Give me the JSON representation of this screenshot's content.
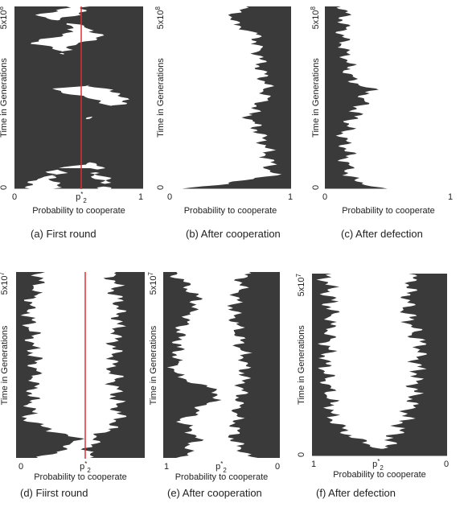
{
  "panels": [
    {
      "y_axis_label": "Time in Generations",
      "y_ticks": {
        "top": {
          "base": "5x10",
          "exp": "8"
        },
        "bottom": "0"
      },
      "x_ticks": [
        "0",
        {
          "base": "p",
          "sup": "*",
          "sub": "2"
        },
        "1"
      ],
      "x_axis_label": "Probability to cooperate",
      "caption": "(a) First round"
    },
    {
      "y_axis_label": "Time in Generations",
      "y_ticks": {
        "top": {
          "base": "5x10",
          "exp": "8"
        },
        "bottom": "0"
      },
      "x_ticks": [
        "0",
        "1"
      ],
      "x_axis_label": "Probability to cooperate",
      "caption": "(b) After cooperation"
    },
    {
      "y_axis_label": "Time in Generations",
      "y_ticks": {
        "top": {
          "base": "5x10",
          "exp": "8"
        },
        "bottom": "0"
      },
      "x_ticks": [
        "0",
        "1"
      ],
      "x_axis_label": "Probability to cooperate",
      "caption": "(c) After defection"
    },
    {
      "y_axis_label": "Time in Generations",
      "y_ticks": {
        "top": {
          "base": "5x10",
          "exp": "7"
        }
      },
      "x_ticks": [
        "0",
        {
          "base": "p",
          "sup": "*",
          "sub": "2"
        }
      ],
      "x_axis_label": "Probability to cooperate",
      "caption": "(d) Fiirst round"
    },
    {
      "y_axis_label": "Time in Generations",
      "y_ticks": {
        "top": {
          "base": "5x10",
          "exp": "7"
        }
      },
      "x_ticks": [
        "1",
        {
          "base": "p",
          "sup": "*",
          "sub": "2"
        },
        "0"
      ],
      "x_axis_label": "Probability to cooperate",
      "caption": "(e) After cooperation"
    },
    {
      "y_axis_label": "Time in Generations",
      "y_ticks": {
        "top": {
          "base": "5x10",
          "exp": "7"
        },
        "bottom": "0"
      },
      "x_ticks": [
        "1",
        {
          "base": "p",
          "sup": "*",
          "sub": "2"
        },
        "0"
      ],
      "x_axis_label": "Probability to cooperate",
      "caption": "(f) After defection"
    }
  ]
}
